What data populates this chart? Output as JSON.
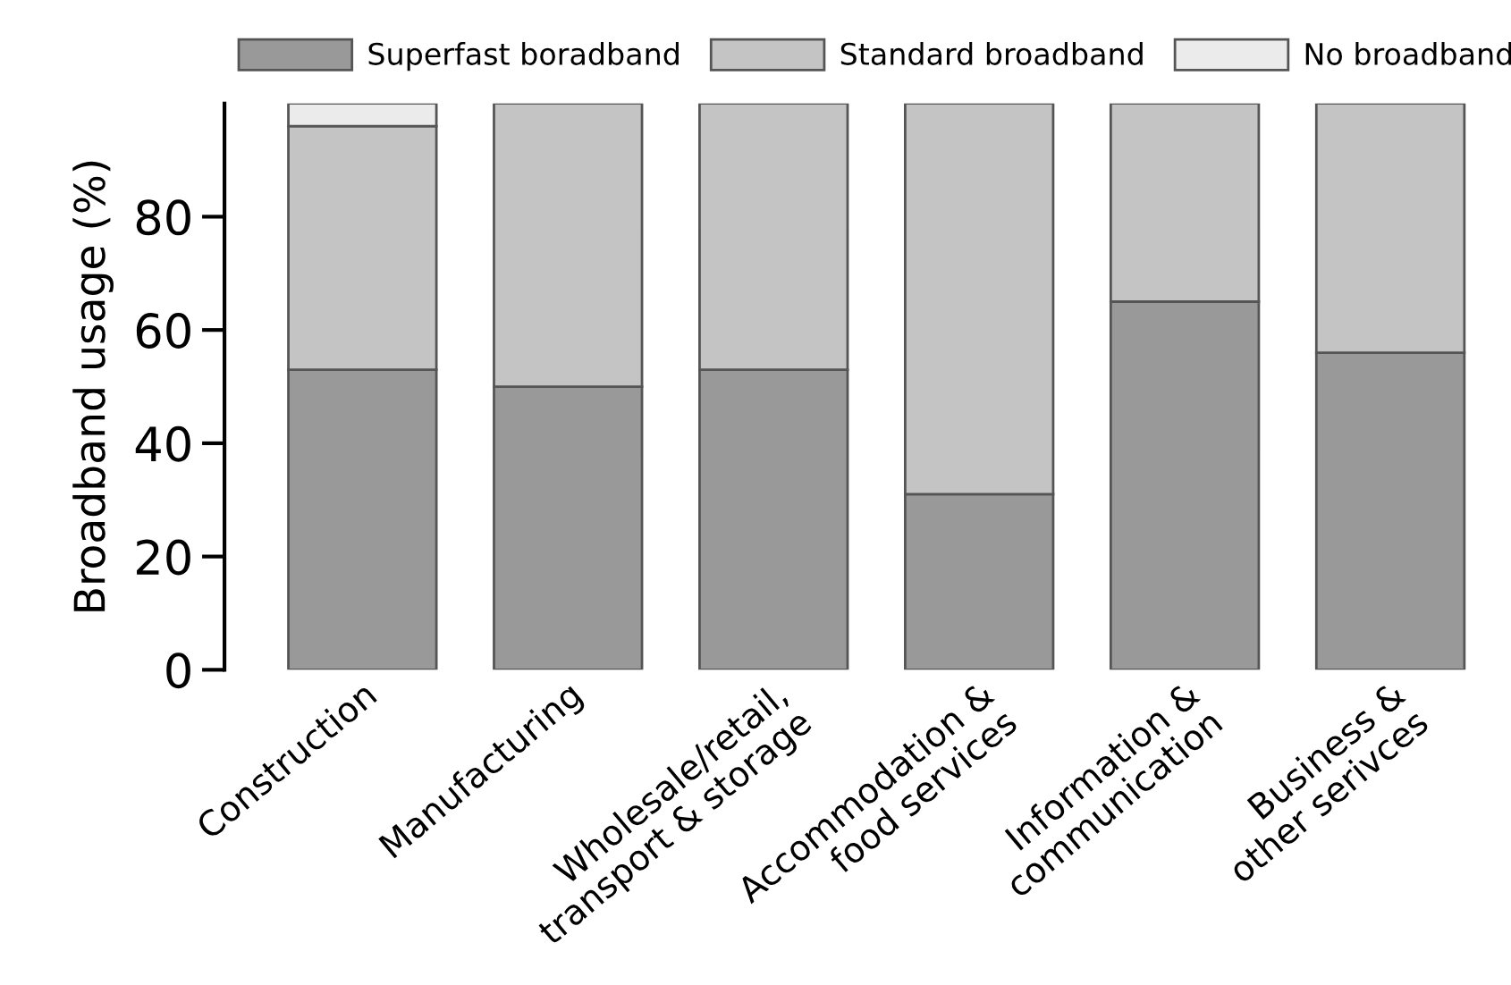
{
  "chart_data": {
    "type": "bar",
    "stacked": true,
    "ylabel": "Broadband usage (%)",
    "categories": [
      "Construction",
      "Manufacturing",
      "Wholesale/retail,\ntransport & storage",
      "Accommodation &\nfood services",
      "Information &\ncommunication",
      "Business &\nother serivces"
    ],
    "series": [
      {
        "name": "Superfast boradband",
        "color": "#999999",
        "values": [
          53,
          50,
          53,
          31,
          65,
          56
        ]
      },
      {
        "name": "Standard broadband",
        "color": "#c4c4c4",
        "values": [
          43,
          50,
          47,
          69,
          35,
          44
        ]
      },
      {
        "name": "No broadband",
        "color": "#ebebeb",
        "values": [
          4,
          0,
          0,
          0,
          0,
          0
        ]
      }
    ],
    "ylim": [
      0,
      100
    ],
    "yticks": [
      0,
      20,
      40,
      60,
      80
    ],
    "grid": false,
    "legend": "top"
  }
}
